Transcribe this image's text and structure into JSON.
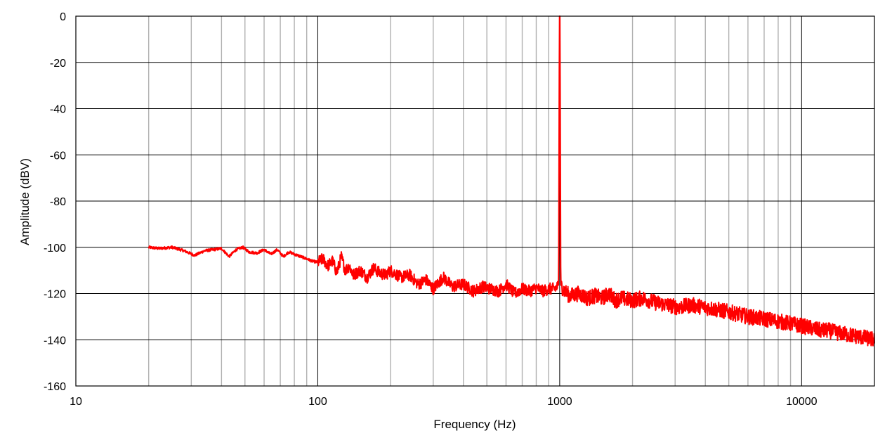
{
  "chart_data": {
    "type": "line",
    "title": "",
    "xlabel": "Frequency (Hz)",
    "ylabel": "Amplitude (dBV)",
    "xscale": "log",
    "xlim": [
      10,
      20000
    ],
    "ylim": [
      -160,
      0
    ],
    "x_ticks": [
      10,
      100,
      1000,
      10000
    ],
    "x_tick_labels": [
      "10",
      "100",
      "1000",
      "10000"
    ],
    "y_ticks": [
      0,
      -20,
      -40,
      -60,
      -80,
      -100,
      -120,
      -140,
      -160
    ],
    "y_tick_labels": [
      "0",
      "-20",
      "-40",
      "-60",
      "-80",
      "-100",
      "-120",
      "-140",
      "-160"
    ],
    "grid": true,
    "legend": "none",
    "colors": {
      "series": "#ff0000",
      "major_grid": "#000000",
      "minor_grid": "#b0b0b0"
    },
    "series": [
      {
        "x": [
          20,
          22,
          25,
          28,
          31,
          34,
          37,
          40,
          43,
          46,
          49,
          52,
          56,
          60,
          64,
          68,
          72,
          76,
          80,
          85,
          90,
          95,
          100,
          105,
          110,
          115,
          120,
          125,
          130,
          135,
          140,
          150,
          160,
          170,
          180,
          190,
          200,
          220,
          240,
          260,
          280,
          300,
          330,
          360,
          400,
          440,
          480,
          520,
          560,
          600,
          650,
          700,
          750,
          800,
          850,
          900,
          950,
          980,
          990,
          995,
          998,
          1000,
          1002,
          1005,
          1010,
          1020,
          1050,
          1100,
          1200,
          1300,
          1400,
          1500,
          1600,
          1700,
          1800,
          2000,
          2200,
          2500,
          2800,
          3100,
          3500,
          4000,
          4500,
          5000,
          5500,
          6000,
          7000,
          8000,
          9000,
          10000,
          11000,
          12000,
          13000,
          14000,
          15000,
          16000,
          17000,
          18000,
          19000,
          20000
        ],
        "y": [
          -100,
          -100.5,
          -100,
          -101.5,
          -103.5,
          -101.5,
          -101,
          -100.5,
          -104,
          -101,
          -100,
          -102,
          -102.5,
          -101,
          -103,
          -101,
          -104,
          -102,
          -103,
          -104,
          -105,
          -106,
          -106.5,
          -105,
          -108,
          -106,
          -111,
          -104,
          -110,
          -108,
          -112,
          -110,
          -113,
          -109,
          -111,
          -112,
          -110,
          -113,
          -112,
          -116,
          -114,
          -118,
          -113,
          -117,
          -116,
          -119,
          -117,
          -118,
          -119,
          -116,
          -120,
          -118,
          -119,
          -117.5,
          -119,
          -118,
          -118,
          -117,
          -116,
          -40,
          0,
          0,
          0,
          -40,
          -116,
          -117,
          -119,
          -121,
          -120,
          -122,
          -121,
          -122,
          -120,
          -123,
          -122,
          -123,
          -122,
          -124,
          -125,
          -126,
          -125,
          -126,
          -127,
          -128,
          -129,
          -130,
          -131,
          -132,
          -133,
          -134,
          -135,
          -136,
          -136,
          -137,
          -137.5,
          -138,
          -138.5,
          -139,
          -139.5,
          -140
        ]
      }
    ]
  }
}
